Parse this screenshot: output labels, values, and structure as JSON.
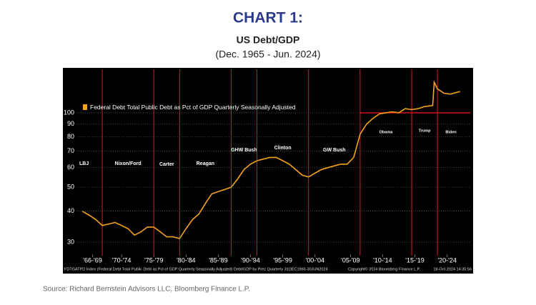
{
  "chart_data": {
    "type": "line",
    "title": "CHART 1:",
    "subtitle": "US Debt/GDP",
    "period": "(Dec. 1965 - Jun. 2024)",
    "source": "Source: Richard Bernstein Advisors LLC, Bloomberg Finance L.P.",
    "footer": "FDTGATPD Index (Federal Debt Total Public Debt as Pct of GDP Quarterly Seasonally Adjusted) Debt/GDP by Prez  Quarterly 31DEC1965-30JUN2024",
    "copyright": "Copyright© 2024 Bloomberg Finance L.P.",
    "timestamp": "18-Oct-2024 14:35:56",
    "log_scale": true,
    "grid": true,
    "legend": "upper left",
    "xlim": [
      1965,
      2025.2
    ],
    "ylim": [
      27.5,
      150
    ],
    "yticks": [
      30,
      40,
      50,
      60,
      70,
      80,
      90,
      100
    ],
    "xticks": [
      {
        "value": 1967.5,
        "label": "'66-'69"
      },
      {
        "value": 1972,
        "label": "'70-'74"
      },
      {
        "value": 1977,
        "label": "'75-'79"
      },
      {
        "value": 1982,
        "label": "'80-'84"
      },
      {
        "value": 1987,
        "label": "'85-'89"
      },
      {
        "value": 1992,
        "label": "'90-'94"
      },
      {
        "value": 1997,
        "label": "'95-'99"
      },
      {
        "value": 2002,
        "label": "'00-'04"
      },
      {
        "value": 2007.5,
        "label": "'05-'09"
      },
      {
        "value": 2012.5,
        "label": "'10-'14"
      },
      {
        "value": 2017.5,
        "label": "'15-'19"
      },
      {
        "value": 2022.5,
        "label": "'20-'24"
      }
    ],
    "x": [
      1965.9,
      1967,
      1968,
      1969,
      1970,
      1971,
      1972,
      1973,
      1974,
      1975,
      1976,
      1977,
      1978,
      1979,
      1980,
      1981,
      1982,
      1983,
      1984,
      1985,
      1986,
      1987,
      1988,
      1989,
      1990,
      1991,
      1992,
      1993,
      1994,
      1995,
      1996,
      1997,
      1998,
      1999,
      2000,
      2001,
      2002,
      2003,
      2004,
      2005,
      2006,
      2007,
      2008,
      2009,
      2010,
      2011,
      2012,
      2013,
      2014,
      2015,
      2016,
      2017,
      2018,
      2019,
      2020.25,
      2020.5,
      2021,
      2022,
      2023,
      2024,
      2024.5
    ],
    "series": [
      {
        "name": "Federal Debt Total Public Debt as Pct of GDP Quarterly Seasonally Adjusted",
        "color": "#f7a21b",
        "values": [
          40,
          38.5,
          37,
          35,
          35.5,
          36,
          35,
          34,
          32,
          33,
          34.5,
          34.5,
          33,
          31.5,
          31.5,
          31,
          34,
          37,
          39,
          43,
          47,
          48,
          49,
          50,
          54,
          59,
          62,
          64,
          65,
          66,
          66,
          64,
          62,
          59,
          56,
          55,
          57,
          59,
          60,
          61,
          62,
          62,
          66,
          82,
          90,
          95,
          99,
          100,
          101,
          100,
          104,
          103,
          104,
          106,
          107,
          133,
          125,
          120,
          119,
          121,
          122
        ]
      }
    ],
    "reference_line": {
      "value": 100,
      "from": 2009,
      "color": "#e8141e"
    },
    "term_color": "#e8141e",
    "presidents": [
      {
        "name": "LBJ",
        "start": 1965.9,
        "end": 1969
      },
      {
        "name": "Nixon/Ford",
        "start": 1969,
        "end": 1977
      },
      {
        "name": "Carter",
        "start": 1977,
        "end": 1981
      },
      {
        "name": "Reagan",
        "start": 1981,
        "end": 1989
      },
      {
        "name": "GHW Bush",
        "start": 1989,
        "end": 1993
      },
      {
        "name": "Clinton",
        "start": 1993,
        "end": 2001
      },
      {
        "name": "GW Bush",
        "start": 2001,
        "end": 2009
      },
      {
        "name": "Obama",
        "start": 2009,
        "end": 2017
      },
      {
        "name": "Trump",
        "start": 2017,
        "end": 2021
      },
      {
        "name": "Biden",
        "start": 2021,
        "end": 2025.2
      }
    ]
  }
}
